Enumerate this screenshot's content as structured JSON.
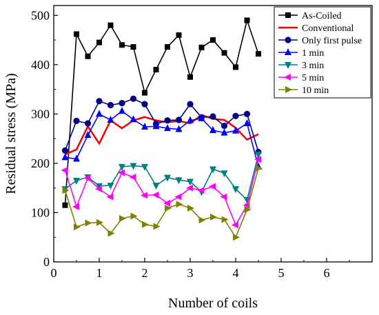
{
  "chart_data": {
    "type": "line",
    "xlabel": "Number of coils",
    "ylabel": "Residual stress (MPa)",
    "xlim": [
      0,
      7
    ],
    "ylim": [
      0,
      520
    ],
    "xticks": [
      0,
      1,
      2,
      3,
      4,
      5,
      6
    ],
    "yticks": [
      0,
      100,
      200,
      300,
      400,
      500
    ],
    "grid": false,
    "legend_position": "top-right",
    "series": [
      {
        "name": "As-Coiled",
        "color": "#000000",
        "marker": "square",
        "points": [
          [
            0.25,
            115
          ],
          [
            0.5,
            462
          ],
          [
            0.75,
            417
          ],
          [
            1.0,
            445
          ],
          [
            1.25,
            480
          ],
          [
            1.5,
            440
          ],
          [
            1.75,
            436
          ],
          [
            2.0,
            343
          ],
          [
            2.25,
            390
          ],
          [
            2.5,
            436
          ],
          [
            2.75,
            460
          ],
          [
            3.0,
            375
          ],
          [
            3.25,
            435
          ],
          [
            3.5,
            450
          ],
          [
            3.75,
            424
          ],
          [
            4.0,
            395
          ],
          [
            4.25,
            490
          ],
          [
            4.5,
            422
          ]
        ]
      },
      {
        "name": "Conventional",
        "color": "#ff0000",
        "marker": "none",
        "points": [
          [
            0.25,
            218
          ],
          [
            0.5,
            228
          ],
          [
            0.75,
            275
          ],
          [
            1.0,
            240
          ],
          [
            1.25,
            287
          ],
          [
            1.5,
            271
          ],
          [
            1.75,
            287
          ],
          [
            2.0,
            294
          ],
          [
            2.25,
            287
          ],
          [
            2.5,
            283
          ],
          [
            2.75,
            286
          ],
          [
            3.0,
            281
          ],
          [
            3.25,
            298
          ],
          [
            3.5,
            290
          ],
          [
            3.75,
            288
          ],
          [
            4.0,
            272
          ],
          [
            4.25,
            248
          ],
          [
            4.5,
            259
          ]
        ]
      },
      {
        "name": "Only first pulse",
        "color": "#000080",
        "marker": "circle",
        "points": [
          [
            0.25,
            226
          ],
          [
            0.5,
            286
          ],
          [
            0.75,
            281
          ],
          [
            1.0,
            326
          ],
          [
            1.25,
            318
          ],
          [
            1.5,
            322
          ],
          [
            1.75,
            331
          ],
          [
            2.0,
            320
          ],
          [
            2.25,
            280
          ],
          [
            2.5,
            287
          ],
          [
            2.75,
            288
          ],
          [
            3.0,
            320
          ],
          [
            3.25,
            293
          ],
          [
            3.5,
            295
          ],
          [
            3.75,
            276
          ],
          [
            4.0,
            296
          ],
          [
            4.25,
            300
          ],
          [
            4.5,
            223
          ]
        ]
      },
      {
        "name": "1 min",
        "color": "#0000ff",
        "marker": "triangle-up",
        "points": [
          [
            0.25,
            212
          ],
          [
            0.5,
            209
          ],
          [
            0.75,
            257
          ],
          [
            1.0,
            300
          ],
          [
            1.25,
            288
          ],
          [
            1.5,
            306
          ],
          [
            1.75,
            289
          ],
          [
            2.0,
            274
          ],
          [
            2.25,
            275
          ],
          [
            2.5,
            271
          ],
          [
            2.75,
            269
          ],
          [
            3.0,
            287
          ],
          [
            3.25,
            291
          ],
          [
            3.5,
            267
          ],
          [
            3.75,
            262
          ],
          [
            4.0,
            266
          ],
          [
            4.25,
            281
          ],
          [
            4.5,
            193
          ]
        ]
      },
      {
        "name": "3 min",
        "color": "#008080",
        "marker": "triangle-down",
        "points": [
          [
            0.25,
            148
          ],
          [
            0.5,
            165
          ],
          [
            0.75,
            172
          ],
          [
            1.0,
            154
          ],
          [
            1.25,
            155
          ],
          [
            1.5,
            193
          ],
          [
            1.75,
            195
          ],
          [
            2.0,
            193
          ],
          [
            2.25,
            155
          ],
          [
            2.5,
            171
          ],
          [
            2.75,
            166
          ],
          [
            3.0,
            163
          ],
          [
            3.25,
            142
          ],
          [
            3.5,
            188
          ],
          [
            3.75,
            180
          ],
          [
            4.0,
            148
          ],
          [
            4.25,
            126
          ],
          [
            4.5,
            218
          ]
        ]
      },
      {
        "name": "5 min",
        "color": "#ff00ff",
        "marker": "triangle-left",
        "points": [
          [
            0.25,
            186
          ],
          [
            0.5,
            112
          ],
          [
            0.75,
            170
          ],
          [
            1.0,
            148
          ],
          [
            1.25,
            132
          ],
          [
            1.5,
            181
          ],
          [
            1.75,
            172
          ],
          [
            2.0,
            135
          ],
          [
            2.25,
            136
          ],
          [
            2.5,
            119
          ],
          [
            2.75,
            132
          ],
          [
            3.0,
            150
          ],
          [
            3.25,
            145
          ],
          [
            3.5,
            153
          ],
          [
            3.75,
            132
          ],
          [
            4.0,
            75
          ],
          [
            4.25,
            115
          ],
          [
            4.5,
            208
          ]
        ]
      },
      {
        "name": "10 min",
        "color": "#808000",
        "marker": "triangle-right",
        "points": [
          [
            0.25,
            145
          ],
          [
            0.5,
            71
          ],
          [
            0.75,
            79
          ],
          [
            1.0,
            80
          ],
          [
            1.25,
            58
          ],
          [
            1.5,
            88
          ],
          [
            1.75,
            93
          ],
          [
            2.0,
            76
          ],
          [
            2.25,
            72
          ],
          [
            2.5,
            109
          ],
          [
            2.75,
            117
          ],
          [
            3.0,
            109
          ],
          [
            3.25,
            85
          ],
          [
            3.5,
            91
          ],
          [
            3.75,
            86
          ],
          [
            4.0,
            50
          ],
          [
            4.25,
            106
          ],
          [
            4.5,
            190
          ]
        ]
      }
    ]
  }
}
